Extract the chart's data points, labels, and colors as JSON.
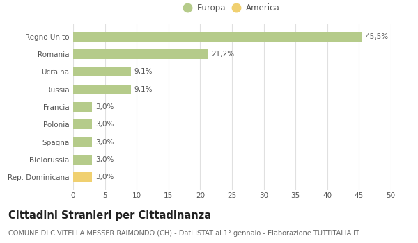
{
  "categories": [
    "Rep. Dominicana",
    "Bielorussia",
    "Spagna",
    "Polonia",
    "Francia",
    "Russia",
    "Ucraina",
    "Romania",
    "Regno Unito"
  ],
  "values": [
    3.0,
    3.0,
    3.0,
    3.0,
    3.0,
    9.1,
    9.1,
    21.2,
    45.5
  ],
  "labels": [
    "3,0%",
    "3,0%",
    "3,0%",
    "3,0%",
    "3,0%",
    "9,1%",
    "9,1%",
    "21,2%",
    "45,5%"
  ],
  "colors": [
    "#f0d070",
    "#b5cb8a",
    "#b5cb8a",
    "#b5cb8a",
    "#b5cb8a",
    "#b5cb8a",
    "#b5cb8a",
    "#b5cb8a",
    "#b5cb8a"
  ],
  "legend_europa_color": "#b5cb8a",
  "legend_america_color": "#f0d070",
  "xlim": [
    0,
    50
  ],
  "xticks": [
    0,
    5,
    10,
    15,
    20,
    25,
    30,
    35,
    40,
    45,
    50
  ],
  "title": "Cittadini Stranieri per Cittadinanza",
  "subtitle": "COMUNE DI CIVITELLA MESSER RAIMONDO (CH) - Dati ISTAT al 1° gennaio - Elaborazione TUTTITALIA.IT",
  "background_color": "#ffffff",
  "grid_color": "#e0e0e0",
  "bar_height": 0.55,
  "label_fontsize": 7.5,
  "title_fontsize": 10.5,
  "subtitle_fontsize": 7,
  "tick_fontsize": 7.5,
  "legend_fontsize": 8.5
}
